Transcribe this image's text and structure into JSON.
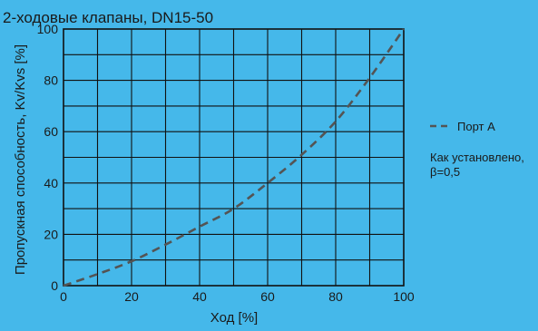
{
  "chart_data": {
    "type": "line",
    "title": "2-ходовые клапаны, DN15-50",
    "xlabel": "Ход [%]",
    "ylabel": "Пропускная способность, Kv/Kvs [%]",
    "xlim": [
      0,
      100
    ],
    "ylim": [
      0,
      100
    ],
    "x_ticks": [
      0,
      20,
      40,
      60,
      80,
      100
    ],
    "y_ticks": [
      0,
      20,
      40,
      60,
      80,
      100
    ],
    "grid": true,
    "legend_position": "right",
    "series": [
      {
        "name": "Порт А",
        "line_style": "dashed",
        "color": "#545454",
        "x": [
          0,
          10,
          20,
          30,
          40,
          50,
          60,
          70,
          80,
          90,
          100
        ],
        "y": [
          0,
          4.5,
          9.5,
          16,
          23,
          30,
          40,
          51,
          64,
          81,
          100
        ]
      }
    ],
    "annotation": {
      "line1": "Как установлено,",
      "line2": "β=0,5"
    }
  },
  "colors": {
    "background": "#45b8ea",
    "plot_background": "#45b8ea",
    "grid": "#111111",
    "series": "#545454"
  }
}
